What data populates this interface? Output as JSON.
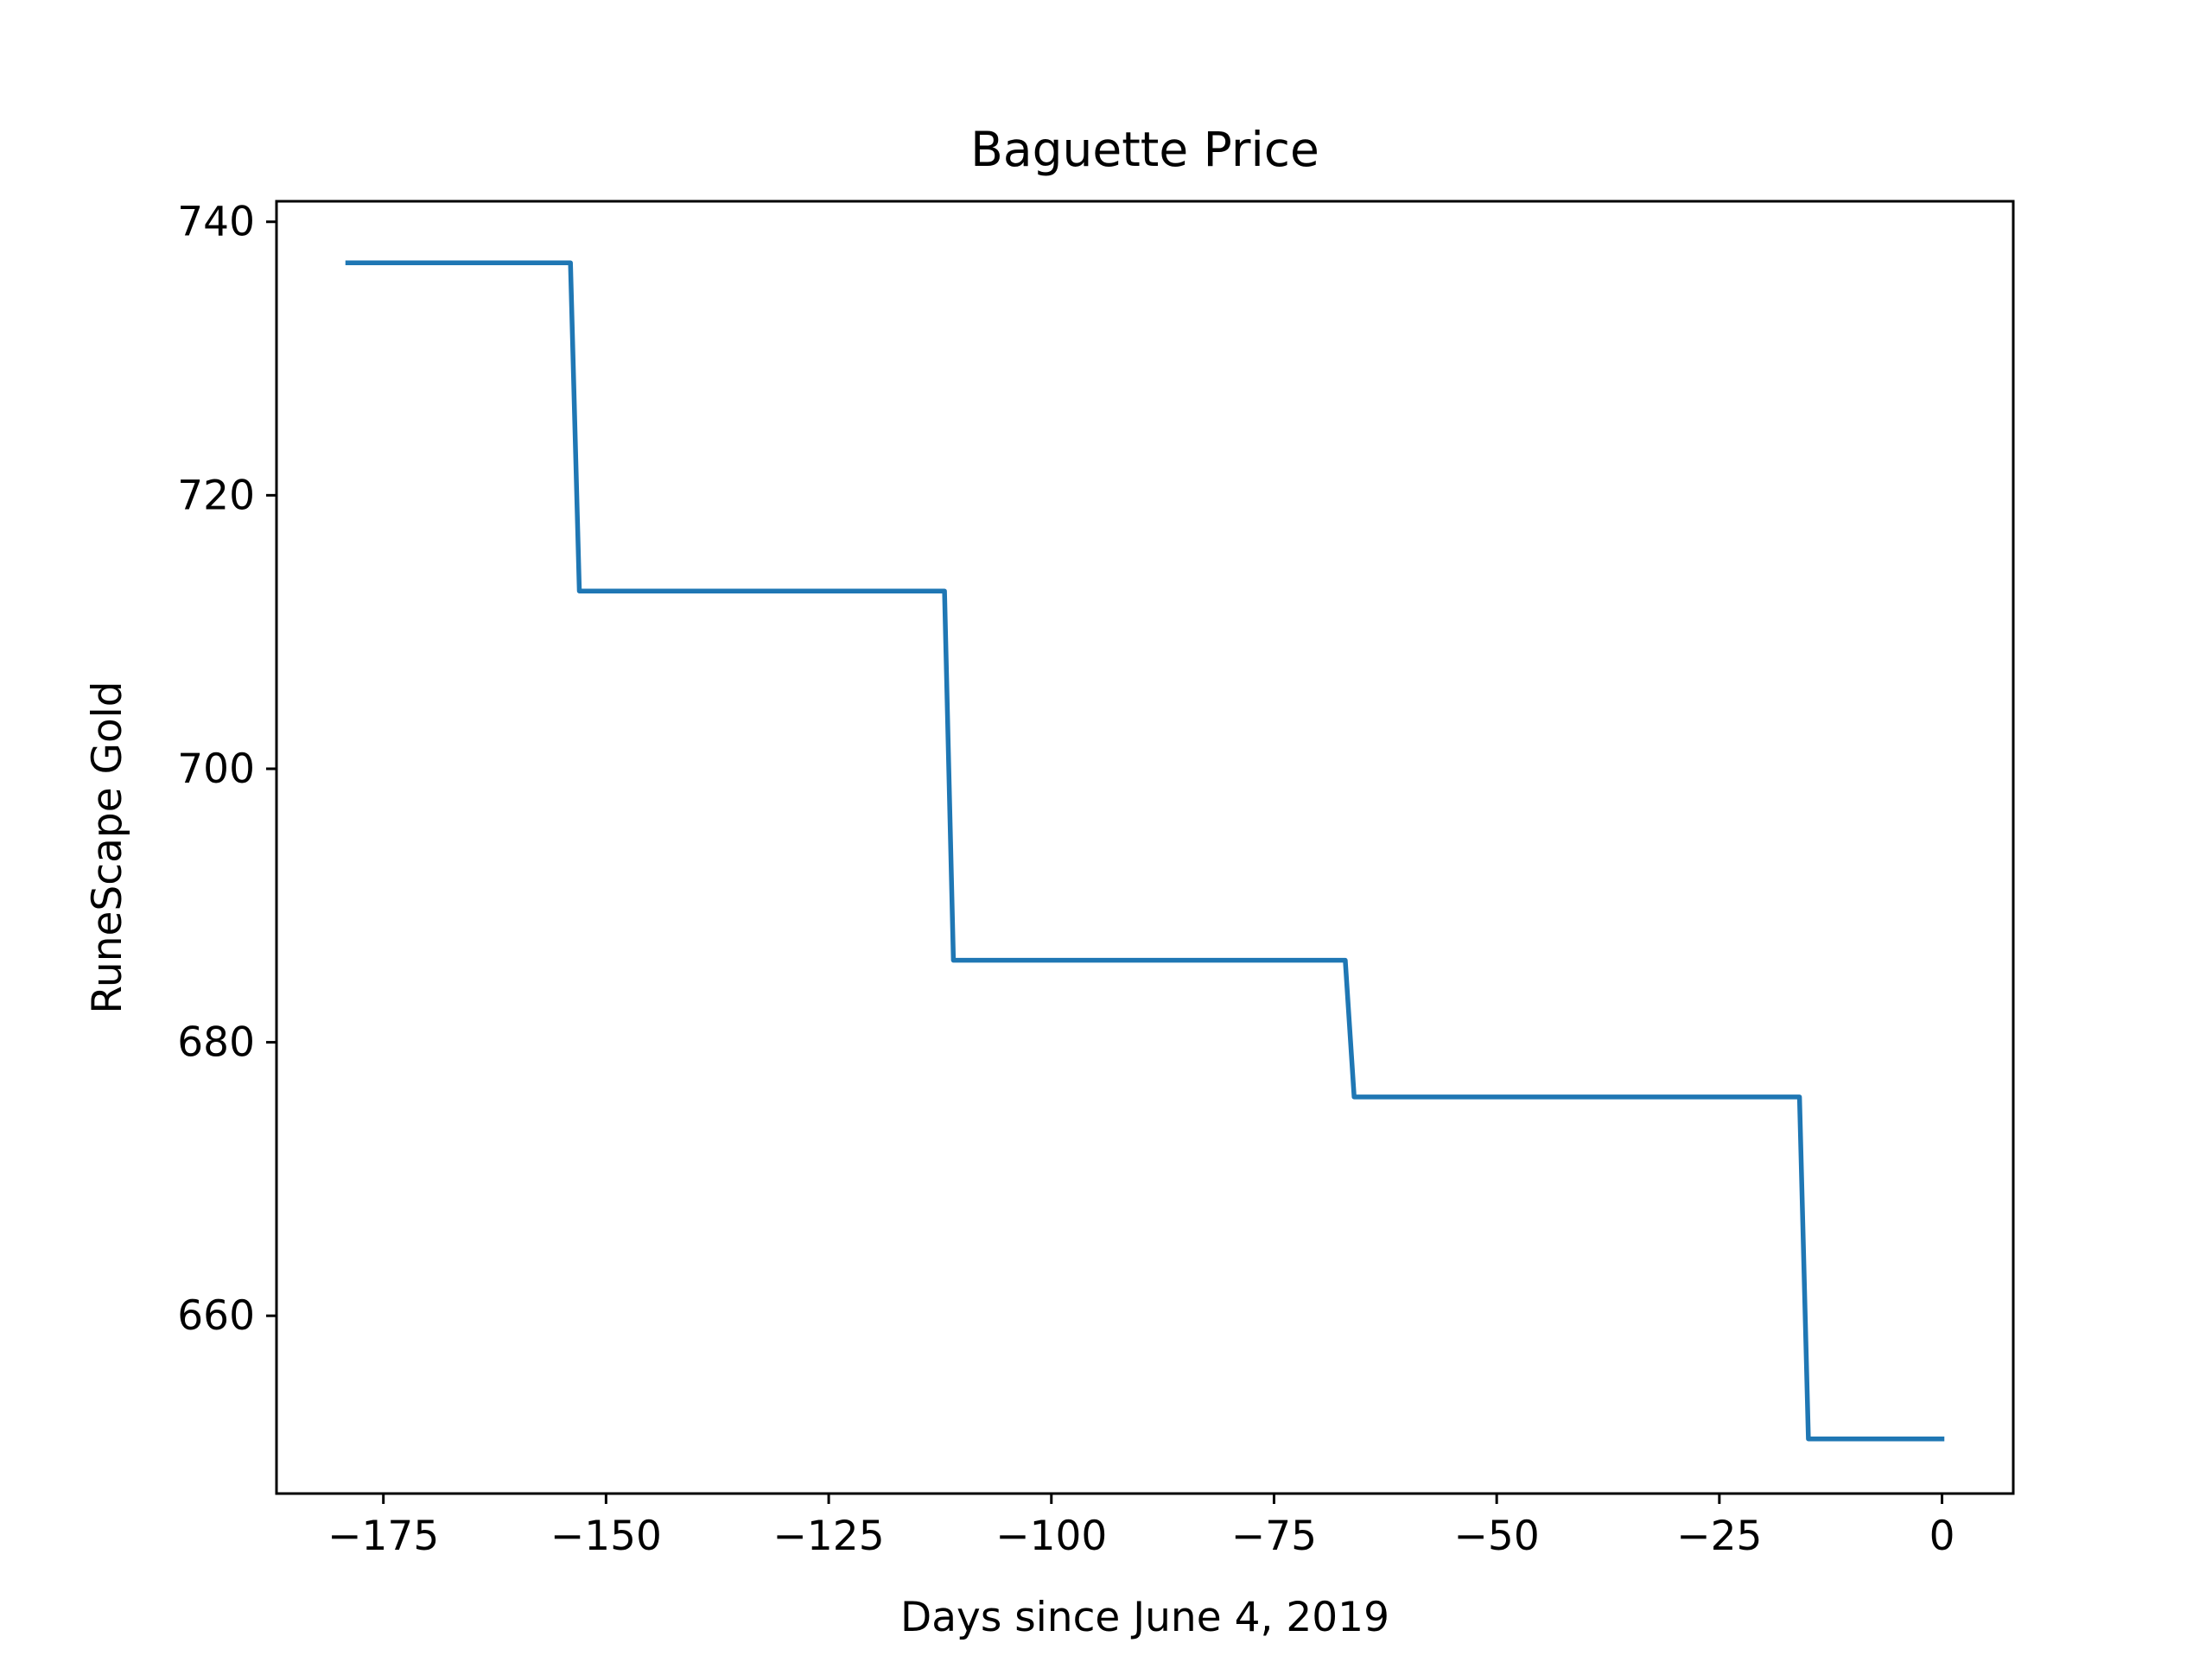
{
  "chart_data": {
    "type": "line",
    "title": "Baguette Price",
    "xlabel": "Days since June 4, 2019",
    "ylabel": "RuneScape Gold",
    "xlim": [
      -187,
      8
    ],
    "ylim": [
      647,
      741.5
    ],
    "x_ticks": [
      -175,
      -150,
      -125,
      -100,
      -75,
      -50,
      -25,
      0
    ],
    "x_tick_labels": [
      "−175",
      "−150",
      "−125",
      "−100",
      "−75",
      "−50",
      "−25",
      "0"
    ],
    "y_ticks": [
      660,
      680,
      700,
      720,
      740
    ],
    "y_tick_labels": [
      "660",
      "680",
      "700",
      "720",
      "740"
    ],
    "grid": false,
    "legend": "none",
    "series": [
      {
        "color": "#1f77b4",
        "x": [
          -179,
          -154,
          -153,
          -112,
          -111,
          -67,
          -66,
          -16,
          -15,
          0
        ],
        "y": [
          737,
          737,
          713,
          713,
          686,
          686,
          676,
          676,
          651,
          651
        ]
      }
    ]
  }
}
